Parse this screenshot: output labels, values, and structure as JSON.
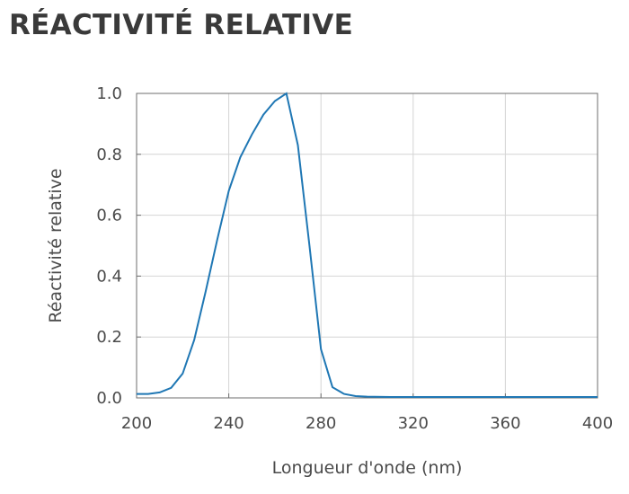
{
  "title": "RÉACTIVITÉ RELATIVE",
  "chart_data": {
    "type": "line",
    "xlabel": "Longueur d'onde (nm)",
    "ylabel": "Réactivité relative",
    "xlim": [
      200,
      400
    ],
    "ylim": [
      0,
      1.0
    ],
    "x_ticks": [
      "200",
      "240",
      "280",
      "320",
      "360",
      "400"
    ],
    "y_ticks": [
      "0.0",
      "0.2",
      "0.4",
      "0.6",
      "0.8",
      "1.0"
    ],
    "grid": true,
    "line_color": "#1f77b4",
    "series": [
      {
        "x": [
          200,
          205,
          210,
          215,
          220,
          225,
          230,
          235,
          240,
          245,
          250,
          255,
          260,
          265,
          270,
          275,
          280,
          285,
          290,
          295,
          300,
          310,
          320,
          340,
          360,
          380,
          400
        ],
        "y": [
          0.013,
          0.013,
          0.018,
          0.033,
          0.08,
          0.19,
          0.35,
          0.52,
          0.68,
          0.79,
          0.865,
          0.93,
          0.975,
          1.0,
          0.83,
          0.5,
          0.16,
          0.035,
          0.013,
          0.006,
          0.004,
          0.003,
          0.003,
          0.003,
          0.003,
          0.003,
          0.003
        ]
      }
    ]
  }
}
